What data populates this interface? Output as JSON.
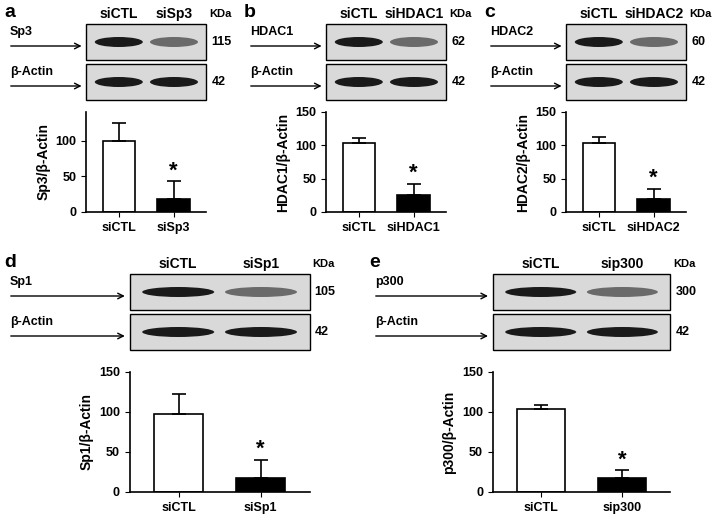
{
  "chart_data": [
    {
      "type": "bar",
      "ylabel": "Sp3/β-Actin",
      "categories": [
        "siCTL",
        "siSp3"
      ],
      "values": [
        100,
        18
      ],
      "errors": [
        25,
        25
      ],
      "colors": [
        "#ffffff",
        "#000000"
      ],
      "ylim": [
        0,
        140
      ],
      "yticks": [
        0,
        50,
        100
      ],
      "annotations": [
        {
          "text": "*",
          "x": "siSp3"
        }
      ]
    },
    {
      "type": "bar",
      "ylabel": "HDAC1/β-Actin",
      "categories": [
        "siCTL",
        "siHDAC1"
      ],
      "values": [
        104,
        26
      ],
      "errors": [
        7,
        16
      ],
      "colors": [
        "#ffffff",
        "#000000"
      ],
      "ylim": [
        0,
        150
      ],
      "yticks": [
        0,
        50,
        100,
        150
      ],
      "annotations": [
        {
          "text": "*",
          "x": "siHDAC1"
        }
      ]
    },
    {
      "type": "bar",
      "ylabel": "HDAC2/β-Actin",
      "categories": [
        "siCTL",
        "siHDAC2"
      ],
      "values": [
        104,
        20
      ],
      "errors": [
        9,
        15
      ],
      "colors": [
        "#ffffff",
        "#000000"
      ],
      "ylim": [
        0,
        150
      ],
      "yticks": [
        0,
        50,
        100,
        150
      ],
      "annotations": [
        {
          "text": "*",
          "x": "siHDAC2"
        }
      ]
    },
    {
      "type": "bar",
      "ylabel": "Sp1/β-Actin",
      "categories": [
        "siCTL",
        "siSp1"
      ],
      "values": [
        97,
        18
      ],
      "errors": [
        26,
        22
      ],
      "colors": [
        "#ffffff",
        "#000000"
      ],
      "ylim": [
        0,
        150
      ],
      "yticks": [
        0,
        50,
        100,
        150
      ],
      "annotations": [
        {
          "text": "*",
          "x": "siSp1"
        }
      ]
    },
    {
      "type": "bar",
      "ylabel": "p300/β-Actin",
      "categories": [
        "siCTL",
        "sip300"
      ],
      "values": [
        104,
        17
      ],
      "errors": [
        5,
        10
      ],
      "colors": [
        "#ffffff",
        "#000000"
      ],
      "ylim": [
        0,
        150
      ],
      "yticks": [
        0,
        50,
        100,
        150
      ],
      "annotations": [
        {
          "text": "*",
          "x": "sip300"
        }
      ]
    }
  ],
  "blots": [
    {
      "panel": "a",
      "lanes": [
        "siCTL",
        "siSp3"
      ],
      "unit": "KDa",
      "rows": [
        {
          "protein": "Sp3",
          "mw": 115
        },
        {
          "protein": "β-Actin",
          "mw": 42
        }
      ]
    },
    {
      "panel": "b",
      "lanes": [
        "siCTL",
        "siHDAC1"
      ],
      "unit": "KDa",
      "rows": [
        {
          "protein": "HDAC1",
          "mw": 62
        },
        {
          "protein": "β-Actin",
          "mw": 42
        }
      ]
    },
    {
      "panel": "c",
      "lanes": [
        "siCTL",
        "siHDAC2"
      ],
      "unit": "KDa",
      "rows": [
        {
          "protein": "HDAC2",
          "mw": 60
        },
        {
          "protein": "β-Actin",
          "mw": 42
        }
      ]
    },
    {
      "panel": "d",
      "lanes": [
        "siCTL",
        "siSp1"
      ],
      "unit": "KDa",
      "rows": [
        {
          "protein": "Sp1",
          "mw": 105
        },
        {
          "protein": "β-Actin",
          "mw": 42
        }
      ]
    },
    {
      "panel": "e",
      "lanes": [
        "siCTL",
        "sip300"
      ],
      "unit": "KDa",
      "rows": [
        {
          "protein": "p300",
          "mw": 300
        },
        {
          "protein": "β-Actin",
          "mw": 42
        }
      ]
    }
  ]
}
